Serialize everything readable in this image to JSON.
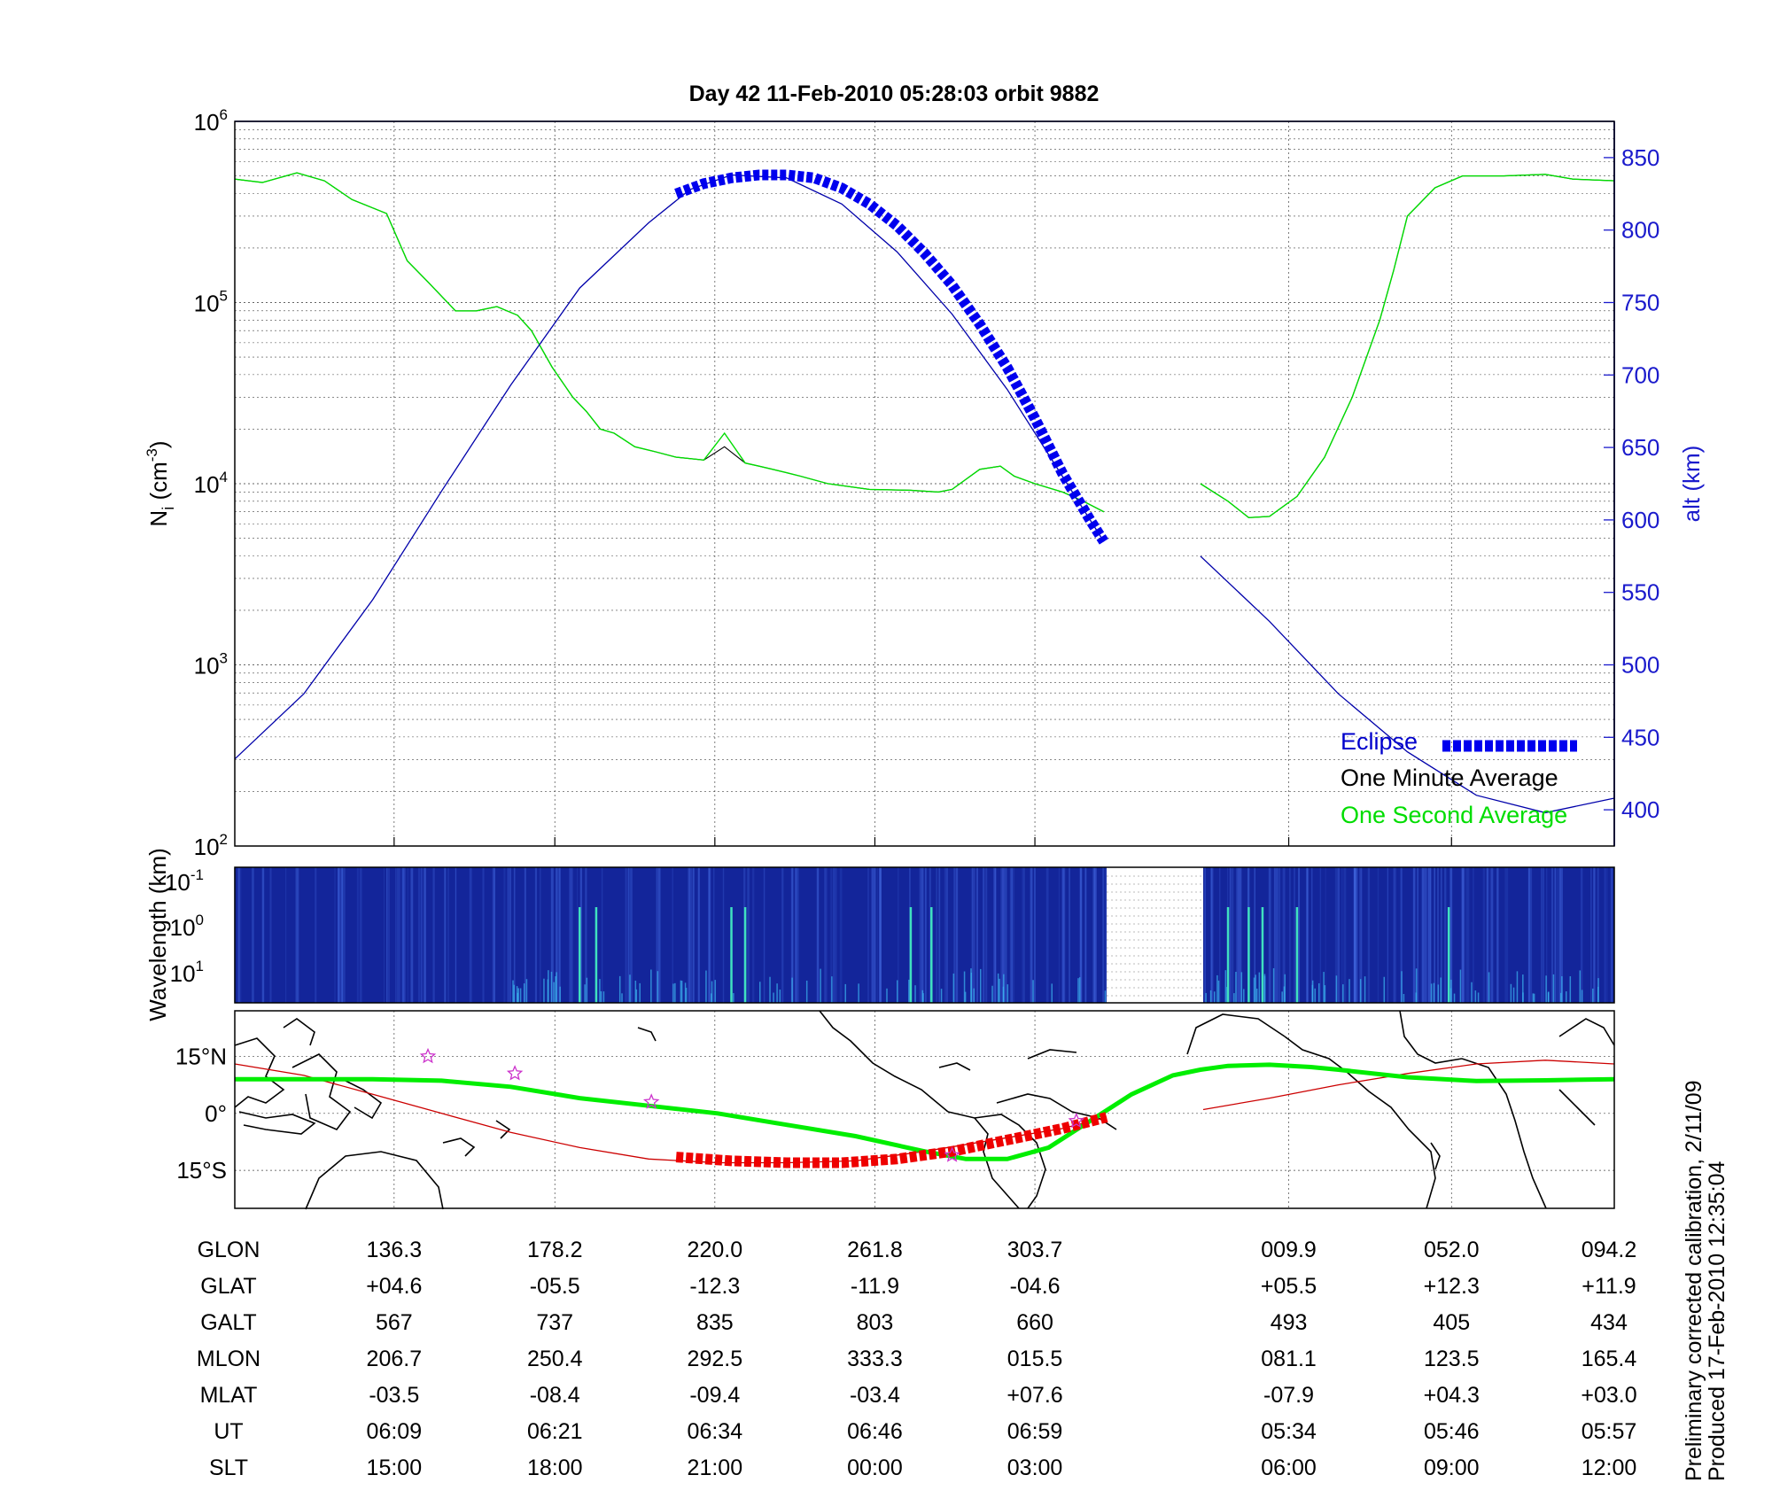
{
  "chart_data": [
    {
      "type": "line",
      "title": "Day 42  11-Feb-2010 05:28:03   orbit 9882",
      "ylabel": "N",
      "ylabel_sub": "i",
      "ylabel_unit": " (cm",
      "ylabel_unit_sup": "-3",
      "ylabel_unit_end": ")",
      "y_scale": "log",
      "ylim": [
        100,
        1000000
      ],
      "y_ticks": [
        {
          "base": "10",
          "exp": "2"
        },
        {
          "base": "10",
          "exp": "3"
        },
        {
          "base": "10",
          "exp": "4"
        },
        {
          "base": "10",
          "exp": "5"
        },
        {
          "base": "10",
          "exp": "6"
        }
      ],
      "y2label": "alt (km)",
      "y2lim": [
        375,
        875
      ],
      "y2_ticks": [
        "400",
        "450",
        "500",
        "550",
        "600",
        "650",
        "700",
        "750",
        "800",
        "850"
      ],
      "grid": true,
      "legend_position": "bottom-right",
      "series": [
        {
          "name": "One Minute Average",
          "color": "#000000",
          "x": [
            0,
            0.02,
            0.045,
            0.065,
            0.085,
            0.11,
            0.125,
            0.14,
            0.16,
            0.175,
            0.19,
            0.205,
            0.215,
            0.23,
            0.245,
            0.255,
            0.265,
            0.275,
            0.29,
            0.305,
            0.32,
            0.34,
            0.355,
            0.37,
            0.38,
            0.39,
            0.4,
            0.41,
            0.43,
            0.46,
            0.49,
            0.51,
            0.52,
            0.54,
            0.555,
            0.565,
            0.58,
            0.6,
            0.615,
            0.63
          ],
          "y": [
            480000,
            460000,
            520000,
            470000,
            370000,
            310000,
            170000,
            130000,
            90000,
            90000,
            95000,
            85000,
            70000,
            44000,
            30000,
            25000,
            20000,
            19000,
            16000,
            15000,
            14000,
            13500,
            16000,
            13000,
            12500,
            12000,
            11500,
            11000,
            10000,
            9300,
            9200,
            9000,
            9300,
            12000,
            12500,
            11000,
            10000,
            9000,
            8000,
            7000
          ]
        },
        {
          "name": "One Minute Average",
          "color": "#000000",
          "x": [
            0.7,
            0.72,
            0.735,
            0.75,
            0.77,
            0.79,
            0.81,
            0.83,
            0.84,
            0.85,
            0.87,
            0.89,
            0.92,
            0.95,
            0.97,
            1.0
          ],
          "y": [
            10000,
            8000,
            6500,
            6600,
            8500,
            14000,
            30000,
            80000,
            150000,
            300000,
            430000,
            500000,
            500000,
            510000,
            480000,
            470000
          ]
        },
        {
          "name": "One Second Average",
          "color": "#00dd00",
          "x": [
            0,
            0.02,
            0.045,
            0.065,
            0.085,
            0.11,
            0.125,
            0.14,
            0.16,
            0.175,
            0.19,
            0.205,
            0.215,
            0.23,
            0.245,
            0.255,
            0.265,
            0.275,
            0.29,
            0.305,
            0.32,
            0.34,
            0.355,
            0.37,
            0.38,
            0.39,
            0.4,
            0.41,
            0.43,
            0.46,
            0.49,
            0.51,
            0.52,
            0.54,
            0.555,
            0.565,
            0.58,
            0.6,
            0.615,
            0.63
          ],
          "y": [
            480000,
            460000,
            520000,
            470000,
            370000,
            310000,
            170000,
            130000,
            90000,
            90000,
            95000,
            85000,
            70000,
            44000,
            30000,
            25000,
            20000,
            19000,
            16000,
            15000,
            14000,
            13500,
            19000,
            13000,
            12500,
            12000,
            11500,
            11000,
            10000,
            9300,
            9200,
            9000,
            9300,
            12000,
            12500,
            11000,
            10000,
            9000,
            8000,
            7000
          ]
        },
        {
          "name": "One Second Average",
          "color": "#00dd00",
          "x": [
            0.7,
            0.72,
            0.735,
            0.75,
            0.77,
            0.79,
            0.81,
            0.83,
            0.84,
            0.85,
            0.87,
            0.89,
            0.92,
            0.95,
            0.97,
            1.0
          ],
          "y": [
            10000,
            8000,
            6500,
            6600,
            8500,
            14000,
            30000,
            80000,
            150000,
            300000,
            430000,
            500000,
            500000,
            510000,
            480000,
            470000
          ]
        },
        {
          "name": "alt (km)",
          "axis": "right",
          "color": "#0000aa",
          "x": [
            0,
            0.05,
            0.1,
            0.15,
            0.2,
            0.25,
            0.3,
            0.33,
            0.36,
            0.4,
            0.44,
            0.48,
            0.52,
            0.56,
            0.6,
            0.63
          ],
          "y": [
            435,
            480,
            545,
            620,
            693,
            760,
            805,
            828,
            838,
            836,
            818,
            785,
            742,
            690,
            630,
            585
          ]
        },
        {
          "name": "alt (km)",
          "axis": "right",
          "color": "#0000aa",
          "x": [
            0.7,
            0.75,
            0.8,
            0.85,
            0.9,
            0.95,
            1.0
          ],
          "y": [
            575,
            530,
            480,
            440,
            410,
            398,
            408
          ]
        },
        {
          "name": "Eclipse",
          "axis": "right",
          "color": "#0000ee",
          "x": [
            0.32,
            0.34,
            0.36,
            0.38,
            0.4,
            0.42,
            0.44,
            0.46,
            0.48,
            0.5,
            0.52,
            0.54,
            0.56,
            0.58,
            0.6,
            0.62,
            0.63
          ],
          "y": [
            825,
            832,
            836,
            838,
            838,
            836,
            829,
            818,
            803,
            784,
            762,
            735,
            705,
            670,
            632,
            600,
            585
          ]
        }
      ],
      "legend": [
        {
          "label": "Eclipse",
          "color": "#0000cc"
        },
        {
          "label": "One Minute Average",
          "color": "#000000"
        },
        {
          "label": "One Second Average",
          "color": "#00dd00"
        }
      ]
    },
    {
      "type": "heatmap",
      "ylabel": "Wavelength (km)",
      "y_ticks": [
        {
          "base": "10",
          "exp": "-1"
        },
        {
          "base": "10",
          "exp": "0"
        },
        {
          "base": "10",
          "exp": "1"
        }
      ],
      "data_gap": [
        0.632,
        0.702
      ],
      "spikes": [
        0.25,
        0.262,
        0.36,
        0.37,
        0.49,
        0.505,
        0.72,
        0.735,
        0.745,
        0.77,
        0.88
      ]
    },
    {
      "type": "map",
      "y_ticks": [
        "15°N",
        "0°",
        "15°S"
      ],
      "ylim": [
        -25,
        27
      ],
      "magnetic_equator": {
        "color": "#00ee00",
        "x": [
          0,
          0.05,
          0.1,
          0.15,
          0.2,
          0.25,
          0.3,
          0.35,
          0.4,
          0.45,
          0.5,
          0.53,
          0.56,
          0.59,
          0.62,
          0.65,
          0.68,
          0.7,
          0.72,
          0.75,
          0.78,
          0.8,
          0.85,
          0.9,
          0.95,
          1.0
        ],
        "y": [
          9,
          9,
          9,
          8.6,
          7,
          4,
          2,
          0,
          -3,
          -6,
          -10,
          -12,
          -12,
          -9,
          -2,
          5,
          10,
          11.5,
          12.5,
          12.8,
          12.2,
          11.5,
          9.5,
          8.5,
          8.7,
          9
        ]
      },
      "orbit_track": {
        "color": "#cc0000",
        "x": [
          0,
          0.05,
          0.1,
          0.15,
          0.2,
          0.25,
          0.3,
          0.35,
          0.4,
          0.45,
          0.5,
          0.55,
          0.6,
          0.632
        ],
        "y": [
          13,
          10,
          5,
          0,
          -5,
          -9,
          -12,
          -13,
          -13,
          -12.5,
          -10,
          -7,
          -4,
          -1
        ]
      },
      "orbit_track_2": {
        "color": "#cc0000",
        "x": [
          0.702,
          0.75,
          0.8,
          0.85,
          0.9,
          0.95,
          1.0
        ],
        "y": [
          1,
          4,
          7.5,
          10.5,
          13,
          14,
          13
        ]
      },
      "eclipse_track": {
        "color": "#ee0000",
        "x": [
          0.32,
          0.36,
          0.4,
          0.44,
          0.48,
          0.52,
          0.56,
          0.6,
          0.632
        ],
        "y": [
          -11.5,
          -12.5,
          -13,
          -13,
          -12,
          -10,
          -7,
          -4,
          -1
        ]
      },
      "stations": [
        {
          "x": 0.14,
          "y": 15
        },
        {
          "x": 0.203,
          "y": 10.5
        },
        {
          "x": 0.302,
          "y": 3
        },
        {
          "x": 0.52,
          "y": -11
        },
        {
          "x": 0.61,
          "y": -2
        }
      ]
    }
  ],
  "table": {
    "row_labels": [
      "GLON",
      "GLAT",
      "GALT",
      "MLON",
      "MLAT",
      "UT",
      "SLT"
    ],
    "columns": [
      {
        "x": 0.1155,
        "values": [
          "136.3",
          "+04.6",
          "567",
          "206.7",
          "-03.5",
          "06:09",
          "15:00"
        ]
      },
      {
        "x": 0.232,
        "values": [
          "178.2",
          "-05.5",
          "737",
          "250.4",
          "-08.4",
          "06:21",
          "18:00"
        ]
      },
      {
        "x": 0.348,
        "values": [
          "220.0",
          "-12.3",
          "835",
          "292.5",
          "-09.4",
          "06:34",
          "21:00"
        ]
      },
      {
        "x": 0.464,
        "values": [
          "261.8",
          "-11.9",
          "803",
          "333.3",
          "-03.4",
          "06:46",
          "00:00"
        ]
      },
      {
        "x": 0.58,
        "values": [
          "303.7",
          "-04.6",
          "660",
          "015.5",
          "+07.6",
          "06:59",
          "03:00"
        ]
      },
      {
        "x": 0.764,
        "values": [
          "009.9",
          "+05.5",
          "493",
          "081.1",
          "-07.9",
          "05:34",
          "06:00"
        ]
      },
      {
        "x": 0.882,
        "values": [
          "052.0",
          "+12.3",
          "405",
          "123.5",
          "+04.3",
          "05:46",
          "09:00"
        ]
      },
      {
        "x": 1.0,
        "values": [
          "094.2",
          "+11.9",
          "434",
          "165.4",
          "+03.0",
          "05:57",
          "12:00"
        ]
      }
    ]
  },
  "footnote": {
    "line1": "Preliminary corrected calibration, 2/11/09",
    "line2": "Produced 17-Feb-2010 12:35:04"
  }
}
